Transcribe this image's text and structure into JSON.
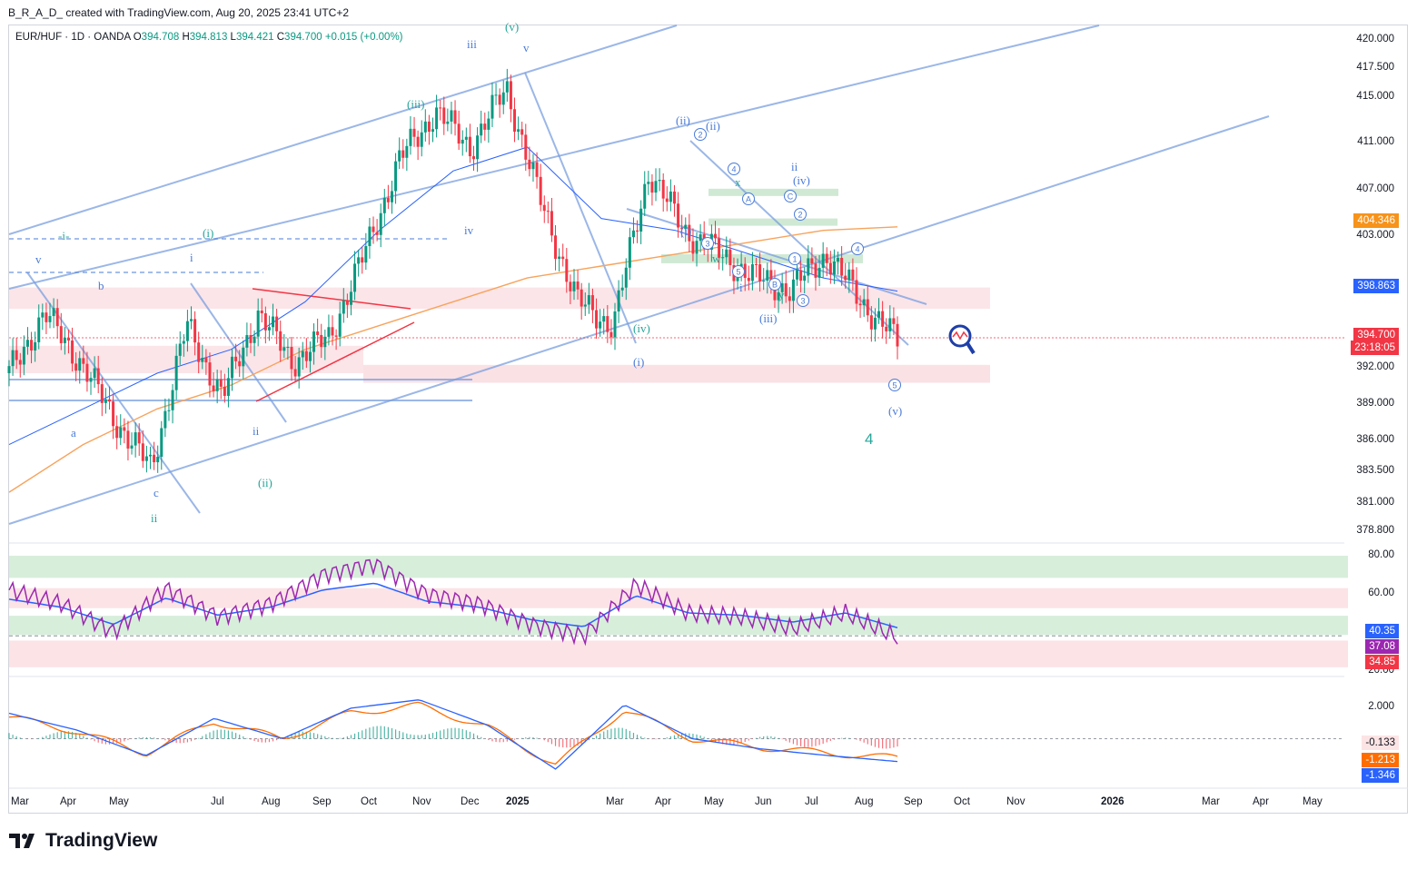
{
  "header": {
    "author_line": "B_R_A_D_ created with TradingView.com, Aug 20, 2025 23:41 UTC+2"
  },
  "legend": {
    "symbol": "EUR/HUF · 1D · OANDA",
    "open_label": "O",
    "open": "394.708",
    "high_label": "H",
    "high": "394.813",
    "low_label": "L",
    "low": "394.421",
    "close_label": "C",
    "close": "394.700",
    "change": "+0.015 (+0.00%)"
  },
  "price_axis": [
    "420.000",
    "417.500",
    "415.000",
    "411.000",
    "407.000",
    "403.000",
    "392.000",
    "389.000",
    "386.000",
    "383.500",
    "381.000",
    "378.800"
  ],
  "price_badges": {
    "ma_orange": "404.346",
    "ma_blue": "398.863",
    "last_price": "394.700",
    "countdown": "23:18:05"
  },
  "rsi_axis": [
    "80.00",
    "60.00",
    "20.00"
  ],
  "rsi_badges": {
    "ma": "40.35",
    "rsi": "37.08",
    "low": "34.85"
  },
  "macd_axis": [
    "2.000"
  ],
  "macd_badges": {
    "hist": "-0.133",
    "signal": "-1.213",
    "macd": "-1.346"
  },
  "time_axis": [
    "Mar",
    "Apr",
    "May",
    "Jul",
    "Aug",
    "Sep",
    "Oct",
    "Nov",
    "Dec",
    "2025",
    "Mar",
    "Apr",
    "May",
    "Jun",
    "Jul",
    "Aug",
    "Sep",
    "Oct",
    "Nov",
    "2026",
    "Mar",
    "Apr",
    "May"
  ],
  "wave_labels": {
    "w1": "-i-",
    "w2": "v",
    "w3": "b",
    "w4": "a",
    "w5": "c",
    "w6": "ii",
    "w7": "i",
    "w8": "(i)",
    "w9": "ii",
    "w10": "(ii)",
    "w11": "iii",
    "w12": "(v)",
    "w13": "v",
    "w14": "(iii)",
    "w15": "iv",
    "w16": "(ii)",
    "w17": "(ii)",
    "w18": "ii",
    "w19": "(iv)",
    "w20": "x",
    "w21": "w",
    "w22": "i",
    "w23": "y",
    "w24": "(iii)",
    "w25": "(iv)",
    "w26": "(i)",
    "w27": "(i)",
    "w28": "(v)",
    "w29": "4"
  },
  "circled_labels": [
    "2",
    "4",
    "A",
    "C",
    "2",
    "3",
    "5",
    "1",
    "B",
    "3",
    "4",
    "5"
  ],
  "footer": {
    "brand": "TradingView"
  },
  "colors": {
    "bull": "#089981",
    "bear": "#f23645",
    "channel": "#7a9fe0",
    "ma_orange": "#f7a35c",
    "ma_blue": "#2962ff",
    "rsi": "#9c27b0",
    "macd_line": "#2962ff",
    "signal": "#ff6d00",
    "wave_teal": "#26a69a",
    "wave_blue": "#4a7bd8"
  },
  "chart_data": {
    "type": "candlestick",
    "title": "EUR/HUF · 1D · OANDA",
    "ylim": [
      378.8,
      420.0
    ],
    "series": [
      {
        "name": "EUR/HUF",
        "values": [
          392,
          397,
          393,
          388,
          384,
          396,
          390,
          397,
          393,
          395,
          402,
          410,
          414,
          411,
          416,
          406,
          398,
          396,
          409,
          404,
          402,
          400,
          399,
          402,
          398,
          394.7
        ]
      },
      {
        "name": "MA",
        "values": [
          382,
          386,
          389,
          391,
          394,
          396,
          398,
          400,
          401,
          402,
          403,
          404,
          404.3
        ]
      },
      {
        "name": "BB basis",
        "values": [
          386,
          389,
          392,
          394,
          398,
          404,
          409,
          411,
          405,
          404,
          402,
          400,
          398.9
        ]
      },
      {
        "name": "RSI",
        "values": [
          62,
          55,
          40,
          63,
          48,
          55,
          70,
          76,
          60,
          55,
          44,
          38,
          65,
          50,
          48,
          42,
          50,
          37.08
        ]
      },
      {
        "name": "MACD",
        "values": [
          1.5,
          0.5,
          -1.0,
          1.2,
          0.0,
          1.8,
          2.3,
          0.8,
          -1.8,
          2.0,
          0.0,
          -0.6,
          -1.0,
          -1.346
        ]
      }
    ]
  }
}
